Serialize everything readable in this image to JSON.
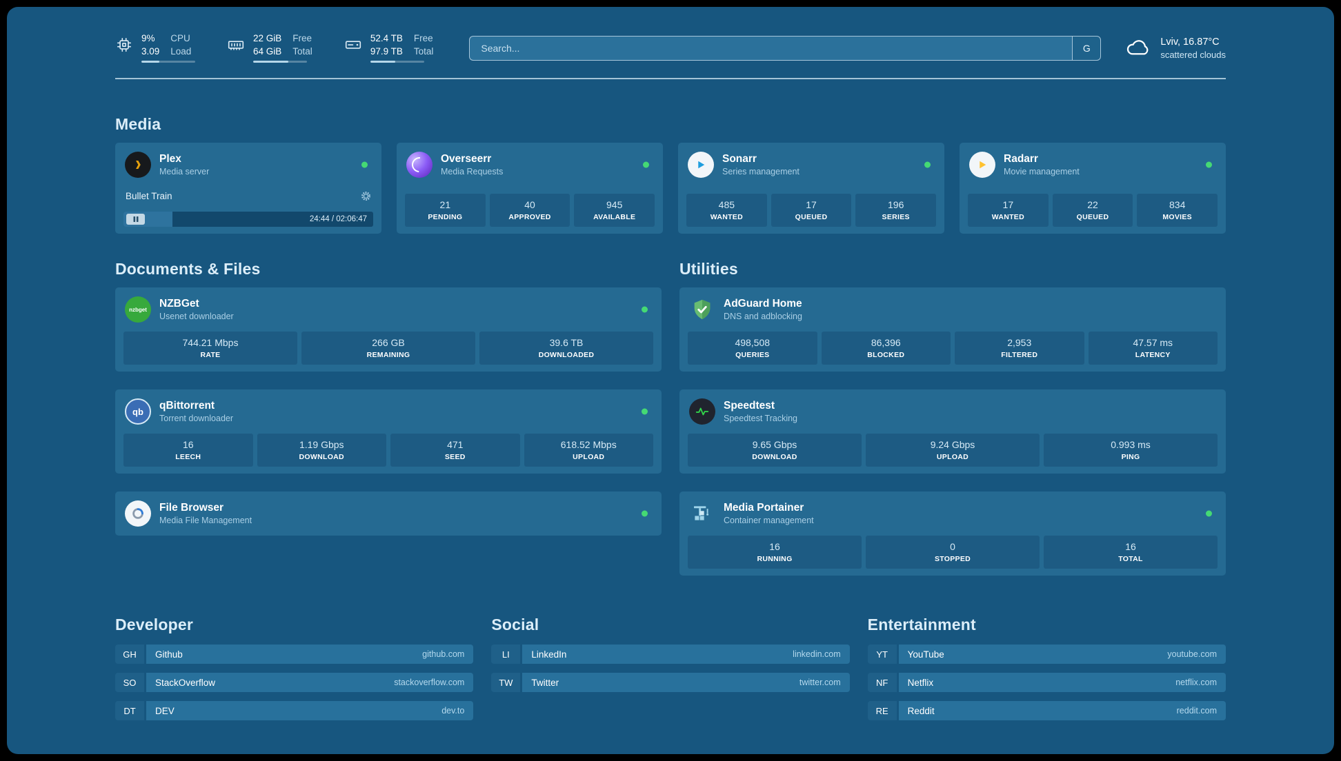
{
  "colors": {
    "background": "#17567f",
    "card": "#256a92",
    "status_online": "#45d974",
    "plex_orange": "#e5a00d",
    "sonarr_blue": "#1f9ede",
    "radarr_yellow": "#ffc230",
    "nzbget_green": "#37a93c",
    "qbittorrent_blue": "#3a6db5",
    "adguard_green": "#68bc71",
    "speedtest_green": "#32d74b",
    "portainer_blue": "#9fd4ea"
  },
  "header": {
    "cpu": {
      "value1": "9%",
      "value2": "3.09",
      "label1": "CPU",
      "label2": "Load",
      "bar_percent": 33
    },
    "memory": {
      "value1": "22 GiB",
      "value2": "64 GiB",
      "label1": "Free",
      "label2": "Total",
      "bar_percent": 66
    },
    "disk": {
      "value1": "52.4 TB",
      "value2": "97.9 TB",
      "label1": "Free",
      "label2": "Total",
      "bar_percent": 47
    },
    "search": {
      "placeholder": "Search...",
      "provider": "G"
    },
    "weather": {
      "location": "Lviv, 16.87°C",
      "condition": "scattered clouds"
    }
  },
  "sections": {
    "media": "Media",
    "documents": "Documents & Files",
    "utilities": "Utilities",
    "developer": "Developer",
    "social": "Social",
    "entertainment": "Entertainment"
  },
  "services": {
    "plex": {
      "name": "Plex",
      "desc": "Media server",
      "now_playing": "Bullet Train",
      "time": "24:44 / 02:06:47",
      "progress_percent": 19.5
    },
    "overseerr": {
      "name": "Overseerr",
      "desc": "Media Requests",
      "stats": [
        {
          "value": "21",
          "label": "PENDING"
        },
        {
          "value": "40",
          "label": "APPROVED"
        },
        {
          "value": "945",
          "label": "AVAILABLE"
        }
      ]
    },
    "sonarr": {
      "name": "Sonarr",
      "desc": "Series management",
      "stats": [
        {
          "value": "485",
          "label": "WANTED"
        },
        {
          "value": "17",
          "label": "QUEUED"
        },
        {
          "value": "196",
          "label": "SERIES"
        }
      ]
    },
    "radarr": {
      "name": "Radarr",
      "desc": "Movie management",
      "stats": [
        {
          "value": "17",
          "label": "WANTED"
        },
        {
          "value": "22",
          "label": "QUEUED"
        },
        {
          "value": "834",
          "label": "MOVIES"
        }
      ]
    },
    "nzbget": {
      "name": "NZBGet",
      "desc": "Usenet downloader",
      "icon_text": "nzbget",
      "stats": [
        {
          "value": "744.21 Mbps",
          "label": "RATE"
        },
        {
          "value": "266 GB",
          "label": "REMAINING"
        },
        {
          "value": "39.6 TB",
          "label": "DOWNLOADED"
        }
      ]
    },
    "qbittorrent": {
      "name": "qBittorrent",
      "desc": "Torrent downloader",
      "icon_text": "qb",
      "stats": [
        {
          "value": "16",
          "label": "LEECH"
        },
        {
          "value": "1.19 Gbps",
          "label": "DOWNLOAD"
        },
        {
          "value": "471",
          "label": "SEED"
        },
        {
          "value": "618.52 Mbps",
          "label": "UPLOAD"
        }
      ]
    },
    "filebrowser": {
      "name": "File Browser",
      "desc": "Media File Management"
    },
    "adguard": {
      "name": "AdGuard Home",
      "desc": "DNS and adblocking",
      "stats": [
        {
          "value": "498,508",
          "label": "QUERIES"
        },
        {
          "value": "86,396",
          "label": "BLOCKED"
        },
        {
          "value": "2,953",
          "label": "FILTERED"
        },
        {
          "value": "47.57 ms",
          "label": "LATENCY"
        }
      ]
    },
    "speedtest": {
      "name": "Speedtest",
      "desc": "Speedtest Tracking",
      "stats": [
        {
          "value": "9.65 Gbps",
          "label": "DOWNLOAD"
        },
        {
          "value": "9.24 Gbps",
          "label": "UPLOAD"
        },
        {
          "value": "0.993 ms",
          "label": "PING"
        }
      ]
    },
    "portainer": {
      "name": "Media Portainer",
      "desc": "Container management",
      "stats": [
        {
          "value": "16",
          "label": "RUNNING"
        },
        {
          "value": "0",
          "label": "STOPPED"
        },
        {
          "value": "16",
          "label": "TOTAL"
        }
      ]
    }
  },
  "bookmarks": {
    "developer": [
      {
        "abbr": "GH",
        "name": "Github",
        "url": "github.com"
      },
      {
        "abbr": "SO",
        "name": "StackOverflow",
        "url": "stackoverflow.com"
      },
      {
        "abbr": "DT",
        "name": "DEV",
        "url": "dev.to"
      }
    ],
    "social": [
      {
        "abbr": "LI",
        "name": "LinkedIn",
        "url": "linkedin.com"
      },
      {
        "abbr": "TW",
        "name": "Twitter",
        "url": "twitter.com"
      }
    ],
    "entertainment": [
      {
        "abbr": "YT",
        "name": "YouTube",
        "url": "youtube.com"
      },
      {
        "abbr": "NF",
        "name": "Netflix",
        "url": "netflix.com"
      },
      {
        "abbr": "RE",
        "name": "Reddit",
        "url": "reddit.com"
      }
    ]
  }
}
